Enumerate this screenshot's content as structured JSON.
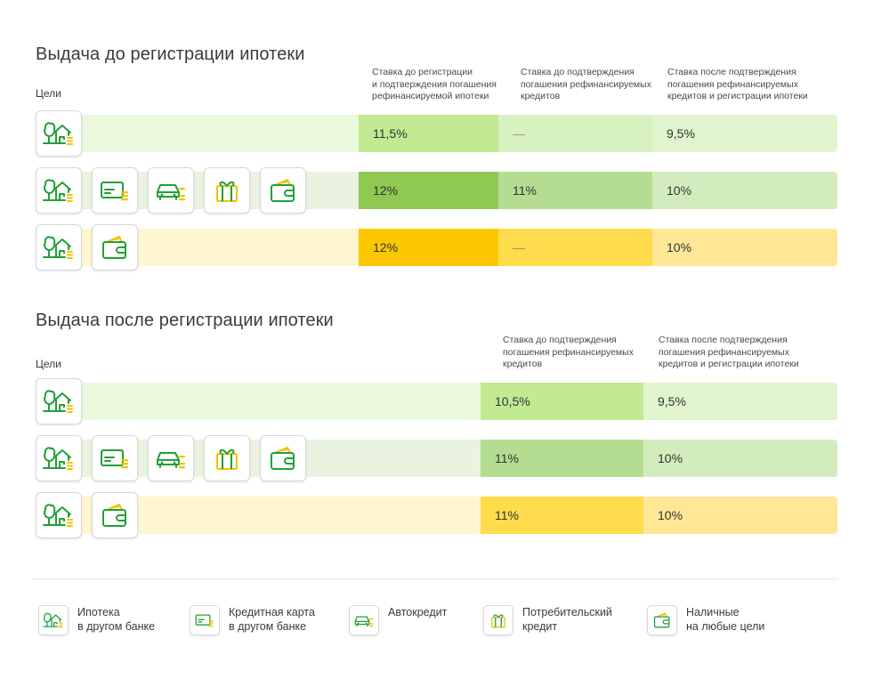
{
  "colors": {
    "green_light": "#eaf8dc",
    "green_mid": "#c1ea93",
    "green_strong": "#8fc852",
    "green_soft": "#b4dd91",
    "green_pale": "#d3ecbd",
    "yellow_light": "#fff5cf",
    "yellow_strong": "#fbc800",
    "yellow_mid": "#ffdc4b",
    "yellow_pale": "#ffe796",
    "icon_green": "#21a038",
    "icon_yellow": "#f2c200"
  },
  "section1": {
    "title": "Выдача до регистрации ипотеки",
    "goals_label": "Цели",
    "headers": [
      "Ставка до регистрации\nи подтверждения погашения\nрефинансируемой ипотеки",
      "Ставка до подтверждения\nпогашения рефинансируемых\nкредитов",
      "Ставка после подтверждения\nпогашения рефинансируемых\nкредитов и регистрации ипотеки"
    ],
    "rows": [
      {
        "icons": [
          "house-icon"
        ],
        "values": [
          "11,5%",
          "—",
          "9,5%"
        ]
      },
      {
        "icons": [
          "house-icon",
          "credit-card-icon",
          "car-icon",
          "gift-icon",
          "wallet-icon"
        ],
        "values": [
          "12%",
          "11%",
          "10%"
        ]
      },
      {
        "icons": [
          "house-icon",
          "wallet-icon"
        ],
        "values": [
          "12%",
          "—",
          "10%"
        ]
      }
    ]
  },
  "section2": {
    "title": "Выдача после регистрации ипотеки",
    "goals_label": "Цели",
    "headers": [
      "Ставка до подтверждения\nпогашения рефинансируемых\nкредитов",
      "Ставка после подтверждения\nпогашения рефинансируемых\nкредитов и регистрации ипотеки"
    ],
    "rows": [
      {
        "icons": [
          "house-icon"
        ],
        "values": [
          "10,5%",
          "9,5%"
        ]
      },
      {
        "icons": [
          "house-icon",
          "credit-card-icon",
          "car-icon",
          "gift-icon",
          "wallet-icon"
        ],
        "values": [
          "11%",
          "10%"
        ]
      },
      {
        "icons": [
          "house-icon",
          "wallet-icon"
        ],
        "values": [
          "11%",
          "10%"
        ]
      }
    ]
  },
  "legend": [
    {
      "icon": "house-icon",
      "text": "Ипотека\nв другом банке"
    },
    {
      "icon": "credit-card-icon",
      "text": "Кредитная карта\nв другом банке"
    },
    {
      "icon": "car-icon",
      "text": "Автокредит"
    },
    {
      "icon": "gift-icon",
      "text": "Потребительский\nкредит"
    },
    {
      "icon": "wallet-icon",
      "text": "Наличные\nна любые цели"
    }
  ]
}
